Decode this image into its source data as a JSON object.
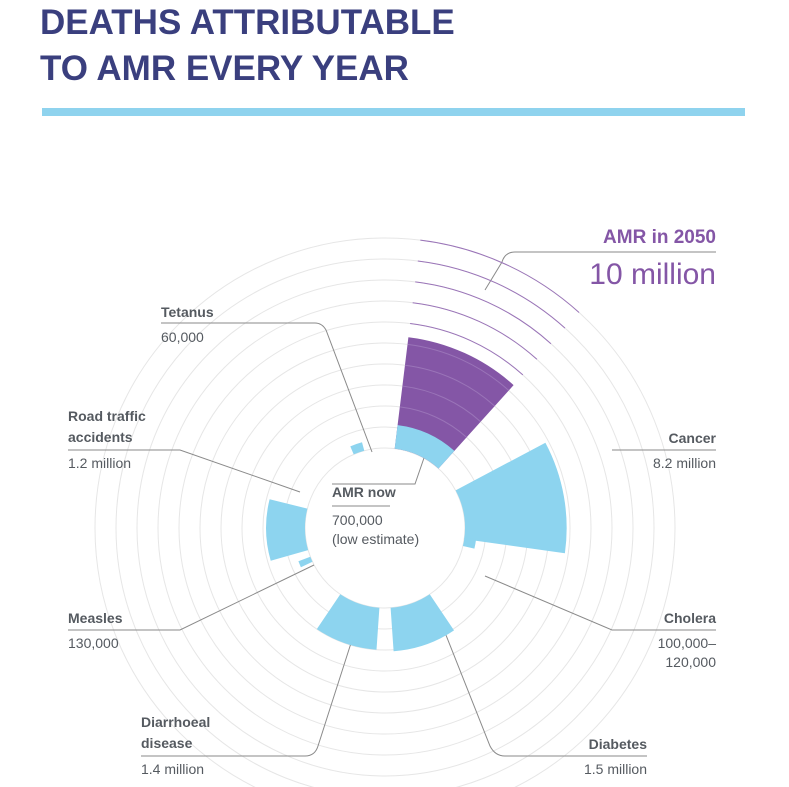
{
  "title_line1": "DEATHS ATTRIBUTABLE",
  "title_line2": "TO AMR EVERY YEAR",
  "colors": {
    "title": "#3a3f7e",
    "rule": "#8fd3ee",
    "segment": "#8dd4ef",
    "highlight": "#8456a6",
    "text": "#555a60",
    "ring": "#e6e6e6",
    "leader": "#8a8a8a"
  },
  "chart_data": {
    "type": "radial-bar",
    "center": {
      "name": "AMR now",
      "value_line1": "700,000",
      "value_line2": "(low estimate)"
    },
    "highlight": {
      "name": "AMR in 2050",
      "value_text": "10 million"
    },
    "categories": [
      "AMR in 2050",
      "Cancer",
      "Cholera",
      "Diabetes",
      "Diarrhoeal disease",
      "Measles",
      "Road traffic accidents",
      "Tetanus"
    ],
    "values": [
      10000000,
      8200000,
      110000,
      1500000,
      1400000,
      130000,
      1200000,
      60000
    ],
    "segments": [
      {
        "name": "Cancer",
        "value": 8200000,
        "value_text": "8.2 million"
      },
      {
        "name": "Cholera",
        "value": 110000,
        "value_text_line1": "100,000–",
        "value_text_line2": "120,000"
      },
      {
        "name": "Diabetes",
        "value": 1500000,
        "value_text": "1.5 million"
      },
      {
        "name": "Diarrhoeal disease",
        "name_line1": "Diarrhoeal",
        "name_line2": "disease",
        "value": 1400000,
        "value_text": "1.4 million"
      },
      {
        "name": "Measles",
        "value": 130000,
        "value_text": "130,000"
      },
      {
        "name": "Road traffic accidents",
        "name_line1": "Road traffic",
        "name_line2": "accidents",
        "value": 1200000,
        "value_text": "1.2 million"
      },
      {
        "name": "Tetanus",
        "value": 60000,
        "value_text": "60,000"
      }
    ]
  }
}
